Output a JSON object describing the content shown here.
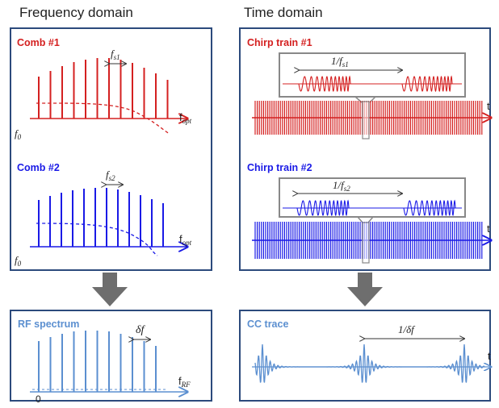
{
  "headings": {
    "frequency": "Frequency domain",
    "time": "Time domain"
  },
  "comb1": {
    "title": "Comb #1",
    "spacing_sym": "f",
    "spacing_sub": "s1",
    "origin_sym": "f",
    "origin_sub": "0",
    "axis_sym": "f",
    "axis_sub": "opt"
  },
  "comb2": {
    "title": "Comb #2",
    "spacing_sym": "f",
    "spacing_sub": "s2",
    "origin_sym": "f",
    "origin_sub": "0",
    "axis_sym": "f",
    "axis_sub": "opt"
  },
  "chirp1": {
    "title": "Chirp train #1",
    "period": "1/f",
    "period_sub": "s1",
    "axis": "t"
  },
  "chirp2": {
    "title": "Chirp train #2",
    "period": "1/f",
    "period_sub": "s2",
    "axis": "t"
  },
  "rf": {
    "title": "RF spectrum",
    "spacing": "δf",
    "axis_sym": "f",
    "axis_sub": "RF",
    "origin": "0"
  },
  "cc": {
    "title": "CC trace",
    "period": "1/δf",
    "axis": "t"
  },
  "colors": {
    "red": "#d42020",
    "blue": "#1a1ae6",
    "lightblue": "#5b8fd0",
    "frame": "#2c4a7c",
    "arrow": "#707070"
  }
}
